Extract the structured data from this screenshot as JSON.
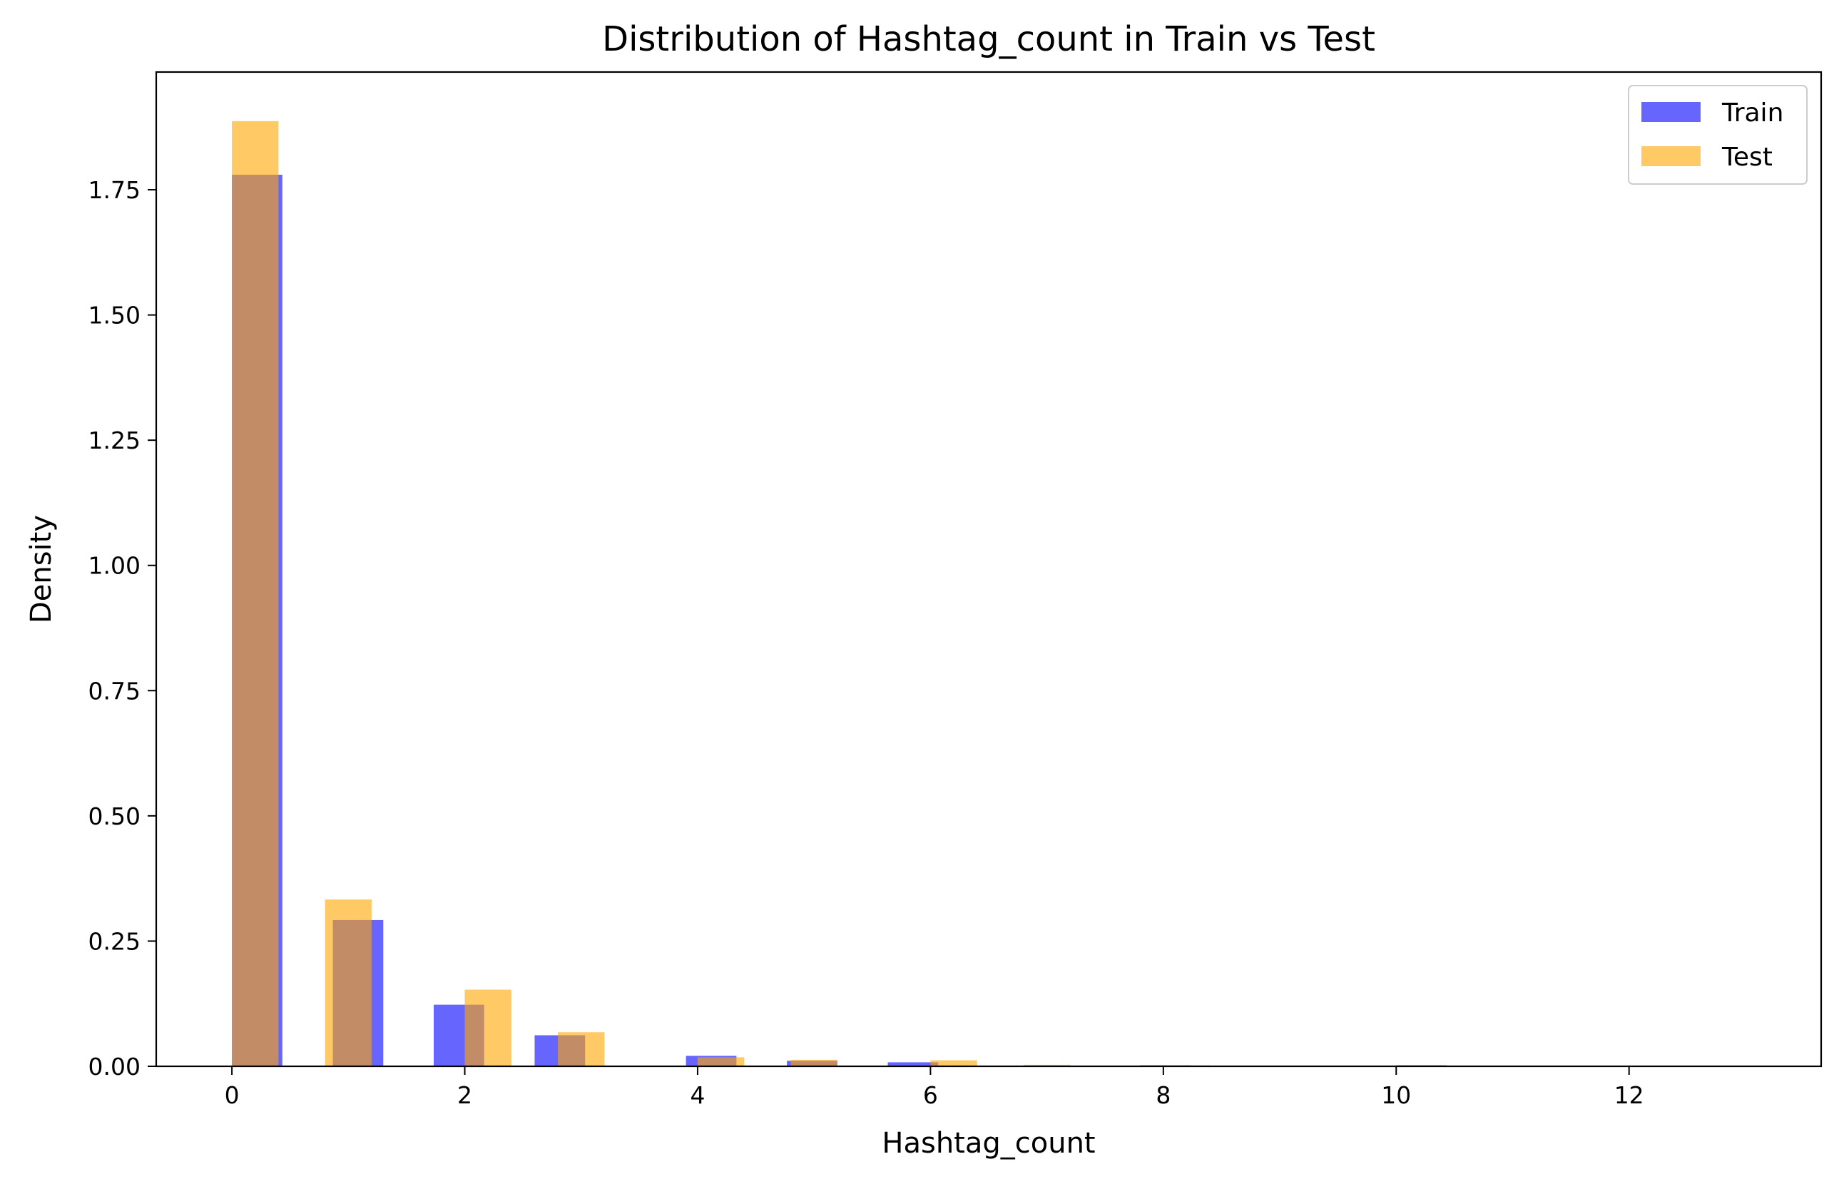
{
  "chart_data": {
    "type": "bar",
    "title": "Distribution of Hashtag_count in Train vs Test",
    "xlabel": "Hashtag_count",
    "ylabel": "Density",
    "xlim": [
      -0.65,
      13.65
    ],
    "ylim": [
      0,
      1.985
    ],
    "xticks": [
      0,
      2,
      4,
      6,
      8,
      10,
      12
    ],
    "xtick_labels": [
      "0",
      "2",
      "4",
      "6",
      "8",
      "10",
      "12"
    ],
    "yticks": [
      0,
      0.25,
      0.5,
      0.75,
      1.0,
      1.25,
      1.5,
      1.75
    ],
    "ytick_labels": [
      "0.00",
      "0.25",
      "0.50",
      "0.75",
      "1.00",
      "1.25",
      "1.50",
      "1.75"
    ],
    "grid": false,
    "legend_position": "top-right",
    "series": [
      {
        "name": "Train",
        "color": "#0000ff",
        "opacity": 0.6,
        "bins": [
          {
            "x0": 0.0,
            "x1": 0.4333,
            "value": 1.78
          },
          {
            "x0": 0.8667,
            "x1": 1.3,
            "value": 0.292
          },
          {
            "x0": 1.7333,
            "x1": 2.1667,
            "value": 0.123
          },
          {
            "x0": 2.6,
            "x1": 3.0333,
            "value": 0.062
          },
          {
            "x0": 3.9,
            "x1": 4.3333,
            "value": 0.021
          },
          {
            "x0": 4.7667,
            "x1": 5.2,
            "value": 0.011
          },
          {
            "x0": 5.6333,
            "x1": 6.0667,
            "value": 0.008
          },
          {
            "x0": 7.8,
            "x1": 8.2333,
            "value": 0.002
          },
          {
            "x0": 10.0,
            "x1": 10.4333,
            "value": 0.002
          }
        ]
      },
      {
        "name": "Test",
        "color": "#ffa500",
        "opacity": 0.6,
        "bins": [
          {
            "x0": 0.0,
            "x1": 0.4,
            "value": 1.887
          },
          {
            "x0": 0.8,
            "x1": 1.2,
            "value": 0.333
          },
          {
            "x0": 2.0,
            "x1": 2.4,
            "value": 0.153
          },
          {
            "x0": 2.8,
            "x1": 3.2,
            "value": 0.068
          },
          {
            "x0": 4.0,
            "x1": 4.4,
            "value": 0.018
          },
          {
            "x0": 4.8,
            "x1": 5.2,
            "value": 0.013
          },
          {
            "x0": 6.0,
            "x1": 6.4,
            "value": 0.012
          },
          {
            "x0": 6.8,
            "x1": 7.2,
            "value": 0.003
          },
          {
            "x0": 8.0,
            "x1": 8.4,
            "value": 0.002
          }
        ]
      }
    ]
  }
}
